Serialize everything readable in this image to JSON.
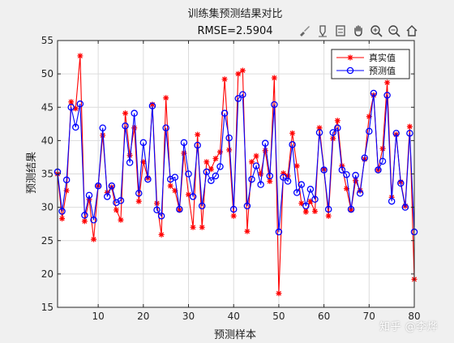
{
  "toolbar": {
    "icons": [
      "brush-icon",
      "datatip-icon",
      "legend-insert-icon",
      "pan-hand-icon",
      "zoom-in-icon",
      "zoom-out-icon",
      "home-icon"
    ]
  },
  "watermark": "知乎 @李烨",
  "chart_data": {
    "type": "line",
    "title": "训练集预测结果对比",
    "subtitle": "RMSE=2.5904",
    "xlabel": "预测样本",
    "ylabel": "预测结果",
    "xlim": [
      1,
      80
    ],
    "ylim": [
      15,
      55
    ],
    "xticks": [
      10,
      20,
      30,
      40,
      50,
      60,
      70,
      80
    ],
    "yticks": [
      15,
      20,
      25,
      30,
      35,
      40,
      45,
      50,
      55
    ],
    "grid": true,
    "legend_position": "top-right",
    "x": [
      1,
      2,
      3,
      4,
      5,
      6,
      7,
      8,
      9,
      10,
      11,
      12,
      13,
      14,
      15,
      16,
      17,
      18,
      19,
      20,
      21,
      22,
      23,
      24,
      25,
      26,
      27,
      28,
      29,
      30,
      31,
      32,
      33,
      34,
      35,
      36,
      37,
      38,
      39,
      40,
      41,
      42,
      43,
      44,
      45,
      46,
      47,
      48,
      49,
      50,
      51,
      52,
      53,
      54,
      55,
      56,
      57,
      58,
      59,
      60,
      61,
      62,
      63,
      64,
      65,
      66,
      67,
      68,
      69,
      70,
      71,
      72,
      73,
      74,
      75,
      76,
      77,
      78,
      79,
      80
    ],
    "series": [
      {
        "name": "真实值",
        "color": "#ff0000",
        "marker": "asterisk",
        "values": [
          35.0,
          28.3,
          32.5,
          45.8,
          44.8,
          52.7,
          27.9,
          31.2,
          25.2,
          33.2,
          40.8,
          32.2,
          33.0,
          29.6,
          28.1,
          44.1,
          37.8,
          41.9,
          30.9,
          36.8,
          34.4,
          45.4,
          30.6,
          25.9,
          46.4,
          33.2,
          32.5,
          29.6,
          38.1,
          31.9,
          27.0,
          40.9,
          27.0,
          36.8,
          35.7,
          37.3,
          38.3,
          49.2,
          38.6,
          28.7,
          50.0,
          50.5,
          26.4,
          36.8,
          37.7,
          35.0,
          38.5,
          33.9,
          49.4,
          17.1,
          35.1,
          34.7,
          41.1,
          36.2,
          30.6,
          29.3,
          30.9,
          29.4,
          41.9,
          35.7,
          28.7,
          40.3,
          43.0,
          36.2,
          32.8,
          29.6,
          34.0,
          32.5,
          37.2,
          43.6,
          46.8,
          35.6,
          38.8,
          48.7,
          31.5,
          40.9,
          33.8,
          30.2,
          42.1,
          19.2
        ]
      },
      {
        "name": "预测值",
        "color": "#0000ff",
        "marker": "circle",
        "values": [
          35.3,
          29.4,
          34.1,
          45.0,
          42.0,
          45.5,
          28.8,
          31.8,
          28.1,
          33.2,
          41.9,
          31.6,
          33.2,
          30.7,
          31.0,
          42.2,
          36.7,
          44.1,
          32.1,
          39.7,
          34.2,
          45.2,
          29.6,
          28.7,
          41.9,
          34.2,
          34.5,
          29.7,
          39.7,
          35.0,
          31.6,
          39.3,
          30.2,
          35.3,
          34.0,
          34.7,
          36.1,
          44.1,
          40.4,
          29.7,
          46.3,
          46.9,
          30.2,
          34.2,
          36.2,
          33.4,
          39.6,
          34.7,
          45.4,
          26.3,
          34.5,
          33.9,
          39.4,
          32.2,
          33.4,
          30.2,
          32.7,
          31.2,
          41.2,
          35.6,
          29.7,
          41.2,
          41.9,
          35.6,
          34.9,
          29.7,
          34.8,
          32.1,
          37.4,
          41.4,
          47.1,
          35.6,
          36.9,
          46.8,
          30.9,
          41.1,
          33.6,
          30.0,
          41.1,
          26.3
        ]
      }
    ]
  }
}
